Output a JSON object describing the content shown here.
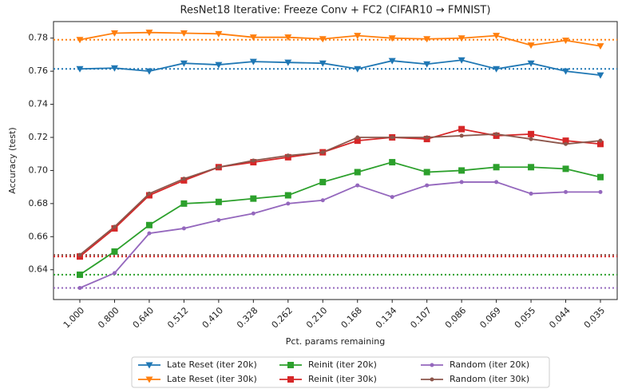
{
  "chart_data": {
    "type": "line",
    "title": "ResNet18 Iterative: Freeze Conv + FC2 (CIFAR10 → FMNIST)",
    "x_label": "Pct. params remaining",
    "y_label": "Accuracy (test)",
    "categories": [
      "1.000",
      "0.800",
      "0.640",
      "0.512",
      "0.410",
      "0.328",
      "0.262",
      "0.210",
      "0.168",
      "0.134",
      "0.107",
      "0.086",
      "0.069",
      "0.055",
      "0.044",
      "0.035"
    ],
    "series": [
      {
        "name": "Late Reset (iter 20k)",
        "color": "#1f77b4",
        "marker": "v",
        "values": [
          0.7614,
          0.7619,
          0.76,
          0.7648,
          0.7639,
          0.7658,
          0.7653,
          0.7648,
          0.7614,
          0.7663,
          0.7643,
          0.7667,
          0.7614,
          0.7648,
          0.76,
          0.7576
        ]
      },
      {
        "name": "Late Reset (iter 30k)",
        "color": "#ff7f0e",
        "marker": "v",
        "values": [
          0.779,
          0.783,
          0.7834,
          0.783,
          0.7826,
          0.7805,
          0.7805,
          0.7795,
          0.7815,
          0.78,
          0.7795,
          0.78,
          0.7815,
          0.7757,
          0.7786,
          0.7752
        ]
      },
      {
        "name": "Reinit (iter 20k)",
        "color": "#2ca02c",
        "marker": "s",
        "values": [
          0.637,
          0.651,
          0.667,
          0.68,
          0.681,
          0.683,
          0.685,
          0.693,
          0.699,
          0.705,
          0.699,
          0.7,
          0.702,
          0.702,
          0.701,
          0.696
        ]
      },
      {
        "name": "Reinit (iter 30k)",
        "color": "#d62728",
        "marker": "s",
        "values": [
          0.648,
          0.665,
          0.685,
          0.694,
          0.702,
          0.705,
          0.708,
          0.711,
          0.718,
          0.72,
          0.719,
          0.725,
          0.721,
          0.722,
          0.718,
          0.716
        ]
      },
      {
        "name": "Random (iter 20k)",
        "color": "#9467bd",
        "marker": "o",
        "values": [
          0.629,
          0.638,
          0.662,
          0.665,
          0.67,
          0.674,
          0.68,
          0.682,
          0.691,
          0.684,
          0.691,
          0.693,
          0.693,
          0.686,
          0.687,
          0.687
        ]
      },
      {
        "name": "Random (iter 30k)",
        "color": "#8c564b",
        "marker": "o",
        "values": [
          0.649,
          0.666,
          0.686,
          0.695,
          0.702,
          0.706,
          0.709,
          0.711,
          0.72,
          0.72,
          0.72,
          0.721,
          0.722,
          0.719,
          0.716,
          0.718
        ]
      }
    ],
    "baseline": "first",
    "ylim": [
      0.622,
      0.79
    ],
    "yticks": [
      {
        "value": 0.64,
        "label": "0.64"
      },
      {
        "value": 0.66,
        "label": "0.66"
      },
      {
        "value": 0.68,
        "label": "0.68"
      },
      {
        "value": 0.7,
        "label": "0.70"
      },
      {
        "value": 0.72,
        "label": "0.72"
      },
      {
        "value": 0.74,
        "label": "0.74"
      },
      {
        "value": 0.76,
        "label": "0.76"
      },
      {
        "value": 0.78,
        "label": "0.78"
      }
    ],
    "legend": "lower center"
  }
}
